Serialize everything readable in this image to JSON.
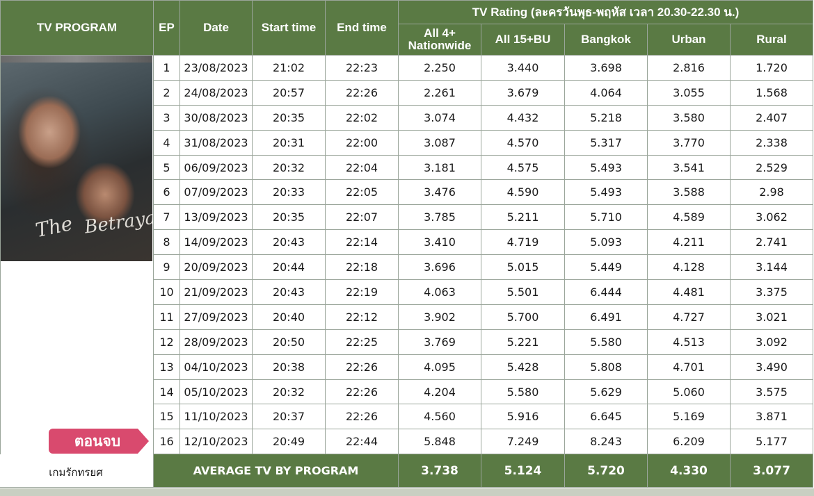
{
  "header": {
    "program": "TV PROGRAM",
    "ep": "EP",
    "date": "Date",
    "start": "Start time",
    "end": "End time",
    "rating_title": "TV Rating  (ละครวันพุธ-พฤหัส เวลา 20.30-22.30 น.)",
    "col_all4": "All 4+ Nationwide",
    "col_all15": "All 15+BU",
    "col_bangkok": "Bangkok",
    "col_urban": "Urban",
    "col_rural": "Rural"
  },
  "poster": {
    "title_a": "The",
    "title_b": "Betrayal"
  },
  "rows": [
    {
      "ep": "1",
      "date": "23/08/2023",
      "start": "21:02",
      "end": "22:23",
      "all4": "2.250",
      "all15": "3.440",
      "bkk": "3.698",
      "urban": "2.816",
      "rural": "1.720"
    },
    {
      "ep": "2",
      "date": "24/08/2023",
      "start": "20:57",
      "end": "22:26",
      "all4": "2.261",
      "all15": "3.679",
      "bkk": "4.064",
      "urban": "3.055",
      "rural": "1.568"
    },
    {
      "ep": "3",
      "date": "30/08/2023",
      "start": "20:35",
      "end": "22:02",
      "all4": "3.074",
      "all15": "4.432",
      "bkk": "5.218",
      "urban": "3.580",
      "rural": "2.407"
    },
    {
      "ep": "4",
      "date": "31/08/2023",
      "start": "20:31",
      "end": "22:00",
      "all4": "3.087",
      "all15": "4.570",
      "bkk": "5.317",
      "urban": "3.770",
      "rural": "2.338"
    },
    {
      "ep": "5",
      "date": "06/09/2023",
      "start": "20:32",
      "end": "22:04",
      "all4": "3.181",
      "all15": "4.575",
      "bkk": "5.493",
      "urban": "3.541",
      "rural": "2.529"
    },
    {
      "ep": "6",
      "date": "07/09/2023",
      "start": "20:33",
      "end": "22:05",
      "all4": "3.476",
      "all15": "4.590",
      "bkk": "5.493",
      "urban": "3.588",
      "rural": "2.98"
    },
    {
      "ep": "7",
      "date": "13/09/2023",
      "start": "20:35",
      "end": "22:07",
      "all4": "3.785",
      "all15": "5.211",
      "bkk": "5.710",
      "urban": "4.589",
      "rural": "3.062"
    },
    {
      "ep": "8",
      "date": "14/09/2023",
      "start": "20:43",
      "end": "22:14",
      "all4": "3.410",
      "all15": "4.719",
      "bkk": "5.093",
      "urban": "4.211",
      "rural": "2.741"
    },
    {
      "ep": "9",
      "date": "20/09/2023",
      "start": "20:44",
      "end": "22:18",
      "all4": "3.696",
      "all15": "5.015",
      "bkk": "5.449",
      "urban": "4.128",
      "rural": "3.144"
    },
    {
      "ep": "10",
      "date": "21/09/2023",
      "start": "20:43",
      "end": "22:19",
      "all4": "4.063",
      "all15": "5.501",
      "bkk": "6.444",
      "urban": "4.481",
      "rural": "3.375"
    },
    {
      "ep": "11",
      "date": "27/09/2023",
      "start": "20:40",
      "end": "22:12",
      "all4": "3.902",
      "all15": "5.700",
      "bkk": "6.491",
      "urban": "4.727",
      "rural": "3.021"
    },
    {
      "ep": "12",
      "date": "28/09/2023",
      "start": "20:50",
      "end": "22:25",
      "all4": "3.769",
      "all15": "5.221",
      "bkk": "5.580",
      "urban": "4.513",
      "rural": "3.092"
    },
    {
      "ep": "13",
      "date": "04/10/2023",
      "start": "20:38",
      "end": "22:26",
      "all4": "4.095",
      "all15": "5.428",
      "bkk": "5.808",
      "urban": "4.701",
      "rural": "3.490"
    },
    {
      "ep": "14",
      "date": "05/10/2023",
      "start": "20:32",
      "end": "22:26",
      "all4": "4.204",
      "all15": "5.580",
      "bkk": "5.629",
      "urban": "5.060",
      "rural": "3.575"
    },
    {
      "ep": "15",
      "date": "11/10/2023",
      "start": "20:37",
      "end": "22:26",
      "all4": "4.560",
      "all15": "5.916",
      "bkk": "6.645",
      "urban": "5.169",
      "rural": "3.871"
    },
    {
      "ep": "16",
      "date": "12/10/2023",
      "start": "20:49",
      "end": "22:44",
      "all4": "5.848",
      "all15": "7.249",
      "bkk": "8.243",
      "urban": "6.209",
      "rural": "5.177"
    }
  ],
  "average": {
    "label": "AVERAGE TV BY PROGRAM",
    "all4": "3.738",
    "all15": "5.124",
    "bkk": "5.720",
    "urban": "4.330",
    "rural": "3.077"
  },
  "finale_label": "ตอนจบ",
  "program_name": "เกมรักทรยศ",
  "colors": {
    "header_green": "#5a7a44",
    "finale_pink": "#d94a6e"
  }
}
